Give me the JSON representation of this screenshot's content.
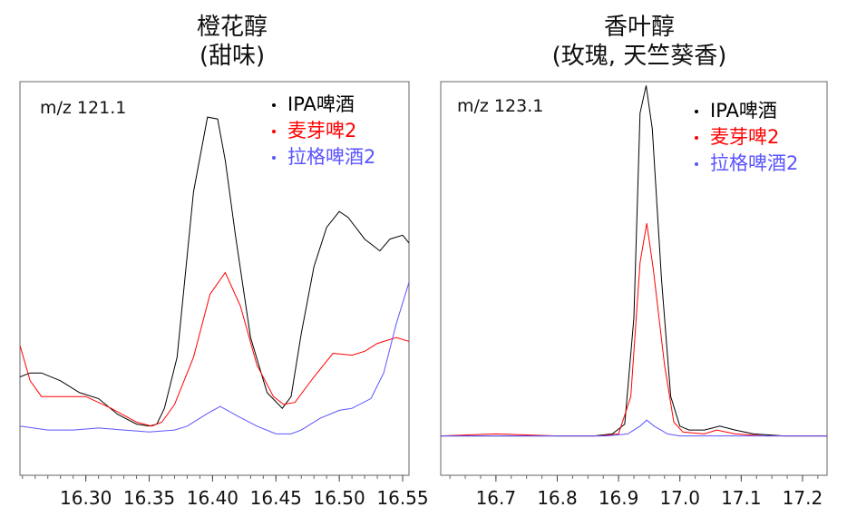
{
  "chart_data": [
    {
      "type": "line",
      "title": "橙花醇",
      "subtitle": "(甜味)",
      "annotation": "m/z 121.1",
      "xlabel": "",
      "ylabel": "",
      "xlim": [
        16.248,
        16.555
      ],
      "ylim": [
        0,
        100
      ],
      "ticks": [
        "16.30",
        "16.35",
        "16.40",
        "16.45",
        "16.50",
        "16.55"
      ],
      "grid": false,
      "legend_position": "top-right",
      "series": [
        {
          "name": "IPA啤酒",
          "color": "#000000",
          "x": [
            16.248,
            16.256,
            16.265,
            16.28,
            16.295,
            16.31,
            16.325,
            16.34,
            16.35,
            16.356,
            16.362,
            16.372,
            16.385,
            16.396,
            16.404,
            16.41,
            16.418,
            16.43,
            16.443,
            16.455,
            16.462,
            16.47,
            16.48,
            16.49,
            16.5,
            16.507,
            16.52,
            16.532,
            16.54,
            16.55,
            16.555
          ],
          "y": [
            25,
            26,
            26,
            24,
            21,
            19.5,
            15.5,
            13,
            12.5,
            13,
            17,
            30,
            72,
            91,
            90.5,
            80,
            61,
            35,
            21,
            17,
            20,
            36,
            53,
            63,
            67,
            65.5,
            60,
            57,
            60,
            61,
            59
          ]
        },
        {
          "name": "麦芽啤2",
          "color": "#ff0000",
          "x": [
            16.248,
            16.256,
            16.265,
            16.28,
            16.3,
            16.32,
            16.34,
            16.352,
            16.36,
            16.37,
            16.385,
            16.398,
            16.41,
            16.422,
            16.435,
            16.448,
            16.456,
            16.465,
            16.48,
            16.495,
            16.51,
            16.52,
            16.53,
            16.545,
            16.555
          ],
          "y": [
            33,
            24,
            20,
            20,
            20,
            17,
            13.5,
            12.5,
            13.5,
            18,
            30,
            46,
            51.5,
            43,
            28,
            20,
            18,
            18.5,
            25,
            31,
            30.5,
            31.5,
            33.5,
            35,
            34
          ]
        },
        {
          "name": "拉格啤酒2",
          "color": "#5b54ff",
          "x": [
            16.248,
            16.27,
            16.29,
            16.31,
            16.33,
            16.35,
            16.37,
            16.38,
            16.395,
            16.406,
            16.42,
            16.435,
            16.45,
            16.462,
            16.47,
            16.485,
            16.5,
            16.51,
            16.525,
            16.535,
            16.545,
            16.555
          ],
          "y": [
            12.5,
            11.5,
            11.5,
            12,
            11.5,
            11,
            11.5,
            12.5,
            15.5,
            17.5,
            15,
            12.5,
            10.5,
            10.5,
            11.5,
            14.5,
            16.5,
            17,
            19.5,
            26,
            38.5,
            49
          ]
        }
      ]
    },
    {
      "type": "line",
      "title": "香叶醇",
      "subtitle": "(玫瑰, 天竺葵香)",
      "annotation": "m/z 123.1",
      "xlabel": "",
      "ylabel": "",
      "xlim": [
        16.61,
        17.24
      ],
      "ylim": [
        0,
        100
      ],
      "ticks": [
        "16.7",
        "16.8",
        "16.9",
        "17.0",
        "17.1",
        "17.2"
      ],
      "grid": false,
      "legend_position": "top-right",
      "series": [
        {
          "name": "IPA啤酒",
          "color": "#000000",
          "x": [
            16.61,
            16.7,
            16.8,
            16.86,
            16.89,
            16.91,
            16.925,
            16.935,
            16.945,
            16.955,
            16.97,
            16.985,
            17.0,
            17.015,
            17.04,
            17.065,
            17.09,
            17.12,
            17.17,
            17.24
          ],
          "y": [
            10,
            10,
            10,
            10,
            10.5,
            13,
            40,
            92,
            99,
            88,
            50,
            20,
            12.5,
            11.5,
            11.5,
            12.5,
            11.5,
            10.5,
            10,
            10
          ]
        },
        {
          "name": "麦芽啤2",
          "color": "#ff0000",
          "x": [
            16.61,
            16.7,
            16.8,
            16.87,
            16.9,
            16.92,
            16.935,
            16.946,
            16.957,
            16.975,
            16.99,
            17.005,
            17.04,
            17.06,
            17.09,
            17.14,
            17.24
          ],
          "y": [
            10,
            10.5,
            10,
            10,
            10.5,
            20,
            54,
            64,
            52,
            28,
            13.5,
            11,
            10.5,
            11.5,
            10.5,
            10,
            10
          ]
        },
        {
          "name": "拉格啤酒2",
          "color": "#5b54ff",
          "x": [
            16.61,
            16.7,
            16.8,
            16.88,
            16.915,
            16.935,
            16.946,
            16.958,
            16.98,
            17.0,
            17.05,
            17.1,
            17.24
          ],
          "y": [
            10,
            10,
            10,
            10,
            10.5,
            12.5,
            14,
            12.5,
            10.5,
            10,
            10,
            10,
            10
          ]
        }
      ]
    }
  ]
}
